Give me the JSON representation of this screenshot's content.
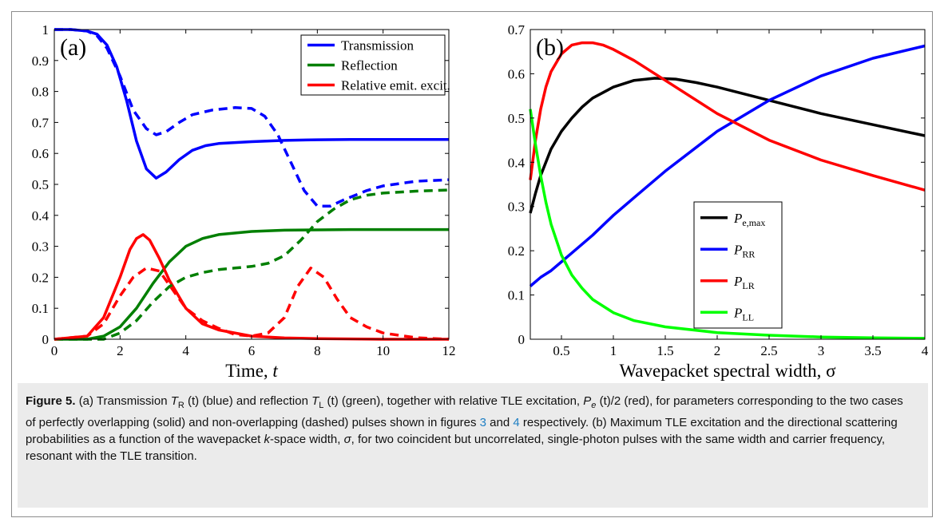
{
  "chart_data": [
    {
      "type": "line",
      "panel_label": "(a)",
      "xlabel": "Time, t",
      "ylabel": "",
      "xlim": [
        0,
        12
      ],
      "ylim": [
        0,
        1
      ],
      "xticks": [
        "0",
        "2",
        "4",
        "6",
        "8",
        "10",
        "12"
      ],
      "yticks": [
        "0",
        "0.1",
        "0.2",
        "0.3",
        "0.4",
        "0.5",
        "0.6",
        "0.7",
        "0.8",
        "0.9",
        "1"
      ],
      "legend_position": "top-right",
      "legend": [
        {
          "label": "Transmission",
          "color": "#0000ff"
        },
        {
          "label": "Reflection",
          "color": "#007f00"
        },
        {
          "label": "Relative emit. excit.",
          "color": "#ff0000"
        }
      ],
      "series": [
        {
          "name": "Transmission",
          "style": "solid",
          "color": "#0000ff",
          "x": [
            0,
            0.5,
            1,
            1.3,
            1.6,
            1.9,
            2.2,
            2.5,
            2.8,
            3.1,
            3.4,
            3.8,
            4.2,
            4.6,
            5,
            6,
            7,
            8,
            9,
            10,
            11,
            12
          ],
          "y": [
            1,
            1,
            0.995,
            0.985,
            0.95,
            0.88,
            0.77,
            0.64,
            0.55,
            0.52,
            0.54,
            0.58,
            0.61,
            0.625,
            0.632,
            0.638,
            0.642,
            0.644,
            0.645,
            0.645,
            0.645,
            0.645
          ]
        },
        {
          "name": "Reflection",
          "style": "solid",
          "color": "#007f00",
          "x": [
            0,
            1,
            1.5,
            2,
            2.5,
            3,
            3.5,
            4,
            4.5,
            5,
            6,
            7,
            8,
            9,
            10,
            11,
            12
          ],
          "y": [
            0,
            0,
            0.01,
            0.04,
            0.1,
            0.18,
            0.25,
            0.3,
            0.325,
            0.338,
            0.348,
            0.352,
            0.353,
            0.354,
            0.354,
            0.354,
            0.354
          ]
        },
        {
          "name": "Relative emit. excit.",
          "style": "solid",
          "color": "#ff0000",
          "x": [
            0,
            1,
            1.5,
            2,
            2.3,
            2.5,
            2.7,
            2.9,
            3.2,
            3.5,
            4,
            4.5,
            5,
            6,
            7,
            8,
            9,
            10,
            12
          ],
          "y": [
            0,
            0.01,
            0.07,
            0.2,
            0.29,
            0.325,
            0.338,
            0.32,
            0.26,
            0.19,
            0.1,
            0.05,
            0.03,
            0.01,
            0.004,
            0.002,
            0.001,
            0,
            0
          ]
        },
        {
          "name": "Transmission",
          "style": "dashed",
          "color": "#0000ff",
          "x": [
            0,
            0.5,
            1,
            1.3,
            1.6,
            2,
            2.4,
            2.8,
            3.1,
            3.4,
            3.8,
            4.2,
            4.8,
            5.5,
            6,
            6.4,
            6.8,
            7.2,
            7.6,
            8,
            8.4,
            8.8,
            9.5,
            10,
            11,
            12
          ],
          "y": [
            1,
            1,
            0.995,
            0.98,
            0.94,
            0.85,
            0.74,
            0.68,
            0.66,
            0.67,
            0.7,
            0.725,
            0.74,
            0.748,
            0.745,
            0.72,
            0.66,
            0.57,
            0.48,
            0.43,
            0.43,
            0.45,
            0.48,
            0.495,
            0.51,
            0.515
          ]
        },
        {
          "name": "Reflection",
          "style": "dashed",
          "color": "#007f00",
          "x": [
            0,
            1.5,
            2,
            2.5,
            3,
            3.5,
            4,
            4.5,
            5,
            5.5,
            6,
            6.5,
            7,
            7.5,
            8,
            8.5,
            9,
            9.5,
            10,
            11,
            12
          ],
          "y": [
            0,
            0,
            0.02,
            0.06,
            0.12,
            0.17,
            0.2,
            0.215,
            0.225,
            0.23,
            0.235,
            0.245,
            0.27,
            0.32,
            0.38,
            0.42,
            0.45,
            0.465,
            0.472,
            0.478,
            0.482
          ]
        },
        {
          "name": "Relative emit. excit.",
          "style": "dashed",
          "color": "#ff0000",
          "x": [
            0,
            1,
            1.5,
            2,
            2.4,
            2.8,
            3.2,
            3.6,
            4,
            4.5,
            5,
            5.5,
            6,
            6.5,
            7,
            7.4,
            7.8,
            8.2,
            8.6,
            9,
            9.5,
            10,
            11,
            12
          ],
          "y": [
            0,
            0.01,
            0.05,
            0.14,
            0.2,
            0.23,
            0.22,
            0.16,
            0.1,
            0.06,
            0.035,
            0.015,
            0.01,
            0.02,
            0.07,
            0.17,
            0.23,
            0.2,
            0.13,
            0.07,
            0.04,
            0.02,
            0.005,
            0
          ]
        }
      ]
    },
    {
      "type": "line",
      "panel_label": "(b)",
      "xlabel": "Wavepacket spectral width, σ",
      "ylabel": "",
      "xlim": [
        0.2,
        4
      ],
      "ylim": [
        0,
        0.7
      ],
      "xticks": [
        "0.5",
        "1",
        "1.5",
        "2",
        "2.5",
        "3",
        "3.5",
        "4"
      ],
      "yticks": [
        "0",
        "0.1",
        "0.2",
        "0.3",
        "0.4",
        "0.5",
        "0.6",
        "0.7"
      ],
      "legend_position": "bottom-right",
      "legend": [
        {
          "label": "P",
          "sub": "e,max",
          "color": "#000000"
        },
        {
          "label": "P",
          "sub": "RR",
          "color": "#0000ff"
        },
        {
          "label": "P",
          "sub": "LR",
          "color": "#ff0000"
        },
        {
          "label": "P",
          "sub": "LL",
          "color": "#00ff00"
        }
      ],
      "series": [
        {
          "name": "P e,max",
          "color": "#000000",
          "x": [
            0.2,
            0.25,
            0.3,
            0.4,
            0.5,
            0.6,
            0.7,
            0.8,
            1,
            1.2,
            1.4,
            1.6,
            1.8,
            2,
            2.5,
            3,
            3.5,
            4
          ],
          "y": [
            0.285,
            0.33,
            0.37,
            0.43,
            0.47,
            0.5,
            0.525,
            0.545,
            0.57,
            0.585,
            0.59,
            0.588,
            0.58,
            0.57,
            0.54,
            0.51,
            0.485,
            0.46
          ]
        },
        {
          "name": "P RR",
          "color": "#0000ff",
          "x": [
            0.2,
            0.3,
            0.4,
            0.5,
            0.6,
            0.8,
            1,
            1.2,
            1.5,
            2,
            2.5,
            3,
            3.5,
            4
          ],
          "y": [
            0.12,
            0.14,
            0.155,
            0.175,
            0.195,
            0.235,
            0.28,
            0.32,
            0.38,
            0.47,
            0.54,
            0.595,
            0.635,
            0.663
          ]
        },
        {
          "name": "P LR",
          "color": "#ff0000",
          "x": [
            0.2,
            0.25,
            0.3,
            0.35,
            0.4,
            0.5,
            0.6,
            0.7,
            0.8,
            0.9,
            1,
            1.2,
            1.5,
            2,
            2.5,
            3,
            3.5,
            4
          ],
          "y": [
            0.36,
            0.45,
            0.52,
            0.57,
            0.605,
            0.645,
            0.665,
            0.67,
            0.67,
            0.665,
            0.655,
            0.63,
            0.585,
            0.51,
            0.45,
            0.405,
            0.37,
            0.337
          ]
        },
        {
          "name": "P LL",
          "color": "#00ff00",
          "x": [
            0.2,
            0.25,
            0.3,
            0.35,
            0.4,
            0.5,
            0.6,
            0.7,
            0.8,
            1,
            1.2,
            1.5,
            2,
            2.5,
            3,
            3.5,
            4
          ],
          "y": [
            0.52,
            0.44,
            0.37,
            0.31,
            0.26,
            0.19,
            0.145,
            0.115,
            0.09,
            0.06,
            0.042,
            0.028,
            0.015,
            0.009,
            0.005,
            0.003,
            0.002
          ]
        }
      ]
    }
  ],
  "caption": {
    "label": "Figure 5.",
    "text": "(a) Transmission T_R (t) (blue) and reflection T_L (t) (green), together with relative TLE excitation, P_e (t)/2 (red), for parameters corresponding to the two cases of perfectly overlapping (solid) and non-overlapping (dashed) pulses shown in figures 3 and 4 respectively. (b) Maximum TLE excitation and the directional scattering probabilities as a function of the wavepacket k-space width, σ, for two coincident but uncorrelated, single-photon pulses with the same width and carrier frequency, resonant with the TLE transition.",
    "parts": [
      {
        "t": "(a) Transmission "
      },
      {
        "t": "T",
        "i": true
      },
      {
        "t": "R",
        "sub": true
      },
      {
        "t": " (t) (blue) and reflection "
      },
      {
        "t": "T",
        "i": true
      },
      {
        "t": "L",
        "sub": true
      },
      {
        "t": " (t) (green), together with relative TLE excitation, "
      },
      {
        "t": "P",
        "i": true
      },
      {
        "t": "e",
        "sub": true,
        "i": true
      },
      {
        "t": " (t)/2 (red), for parameters corresponding to the two cases of perfectly overlapping (solid) and non-overlapping (dashed) pulses shown in figures "
      },
      {
        "t": "3",
        "ref": true
      },
      {
        "t": " and "
      },
      {
        "t": "4",
        "ref": true
      },
      {
        "t": " respectively. (b) Maximum TLE excitation and the directional scattering probabilities as a function of the wavepacket "
      },
      {
        "t": "k",
        "i": true
      },
      {
        "t": "-space width, "
      },
      {
        "t": "σ",
        "i": true
      },
      {
        "t": ", for two coincident but uncorrelated, single-photon pulses with the same width and carrier frequency, resonant with the TLE transition."
      }
    ]
  }
}
